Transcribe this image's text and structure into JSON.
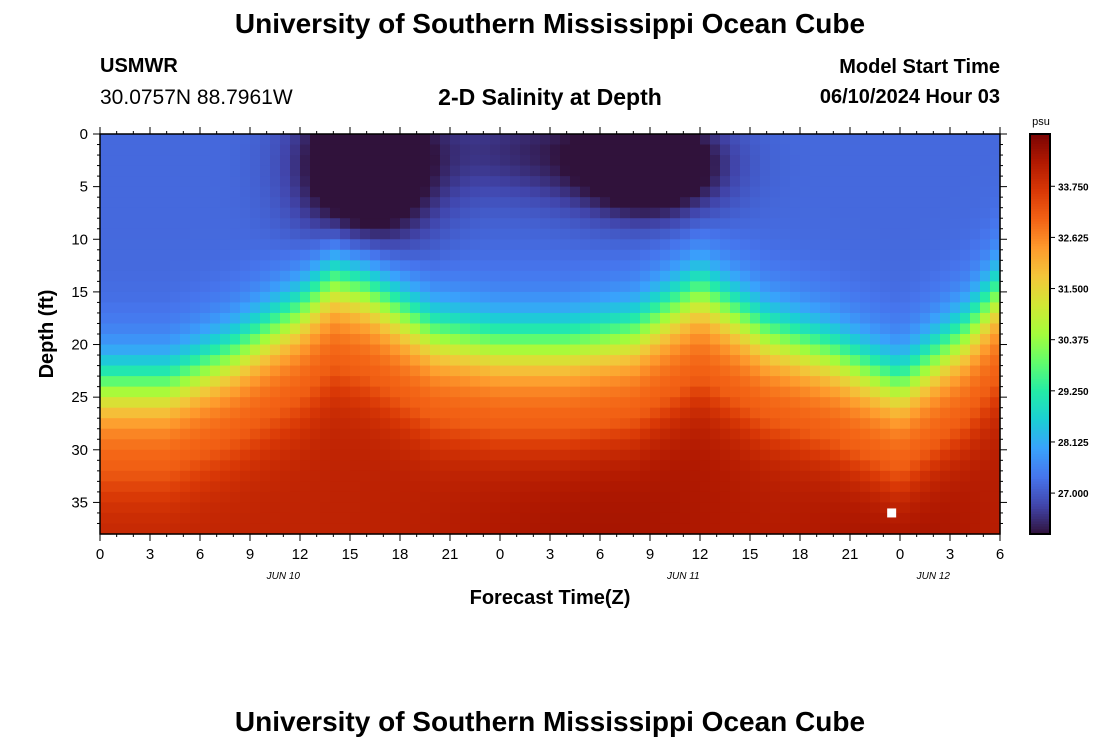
{
  "header": {
    "title": "University of Southern Mississippi Ocean Cube",
    "station": "USMWR",
    "coordinates": "30.0757N  88.7961W",
    "subtitle": "2-D Salinity at Depth",
    "model_start_label": "Model Start Time",
    "model_start_value": "06/10/2024 Hour 03"
  },
  "footer": {
    "title": "University of Southern Mississippi Ocean Cube"
  },
  "chart_data": {
    "type": "heatmap",
    "xlabel": "Forecast Time(Z)",
    "ylabel": "Depth (ft)",
    "x_tick_labels": [
      "0",
      "3",
      "6",
      "9",
      "12",
      "15",
      "18",
      "21",
      "0",
      "3",
      "6",
      "9",
      "12",
      "15",
      "18",
      "21",
      "0",
      "3",
      "6"
    ],
    "x_hours_range": [
      0,
      54
    ],
    "date_labels": [
      {
        "label": "JUN 10",
        "hour": 11
      },
      {
        "label": "JUN 11",
        "hour": 35
      },
      {
        "label": "JUN 12",
        "hour": 50
      }
    ],
    "y_ticks": [
      0,
      5,
      10,
      15,
      20,
      25,
      30,
      35
    ],
    "ylim": [
      0,
      38
    ],
    "colorbar": {
      "unit": "psu",
      "ticks": [
        "33.750",
        "32.625",
        "31.500",
        "30.375",
        "29.250",
        "28.125",
        "27.000"
      ],
      "range": [
        26.1,
        34.9
      ],
      "colors": [
        "#30123b",
        "#4145ab",
        "#4675ed",
        "#39a2fc",
        "#1bcfd4",
        "#24eca6",
        "#61fc6c",
        "#a4fc3b",
        "#d1e834",
        "#f3c63a",
        "#fe9b2d",
        "#f36315",
        "#d93806",
        "#b11901",
        "#7a0403"
      ]
    },
    "approx_field": {
      "description_hours": [
        0,
        4,
        8,
        12,
        14,
        16,
        18,
        20,
        24,
        28,
        32,
        34,
        36,
        38,
        40,
        44,
        48,
        52,
        54
      ],
      "isohaline_depth_ft": [
        24,
        24,
        21,
        17,
        14,
        15,
        17,
        19,
        20,
        20,
        19,
        17,
        15,
        17,
        19,
        21,
        24,
        19,
        15
      ],
      "fresh_core_min_psu": 26.2
    },
    "marker": {
      "hour": 47.5,
      "depth": 36
    }
  }
}
